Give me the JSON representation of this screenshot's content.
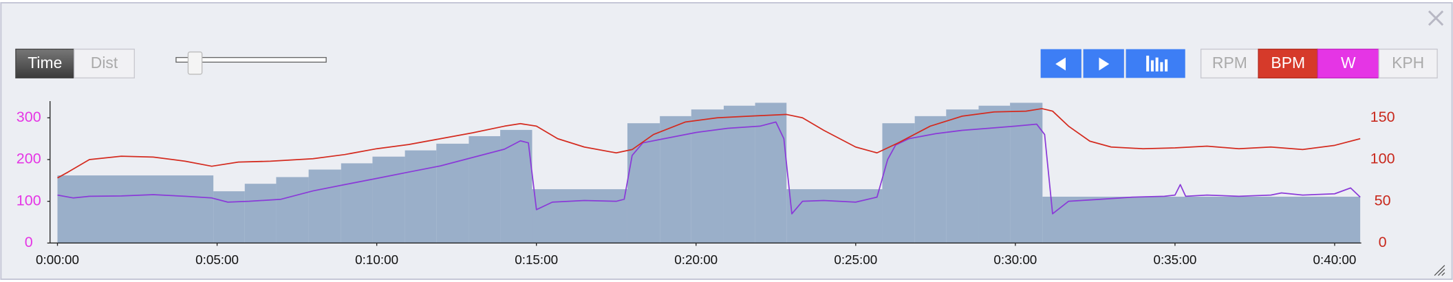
{
  "controls": {
    "modes": [
      "Time",
      "Dist"
    ],
    "channels": [
      "RPM",
      "BPM",
      "W",
      "KPH"
    ]
  },
  "chart_data": {
    "type": "combo",
    "xlim": [
      0,
      2450
    ],
    "xticks": [
      {
        "value": 0,
        "label": "0:00:00"
      },
      {
        "value": 300,
        "label": "0:05:00"
      },
      {
        "value": 600,
        "label": "0:10:00"
      },
      {
        "value": 900,
        "label": "0:15:00"
      },
      {
        "value": 1200,
        "label": "0:20:00"
      },
      {
        "value": 1500,
        "label": "0:25:00"
      },
      {
        "value": 1800,
        "label": "0:30:00"
      },
      {
        "value": 2100,
        "label": "0:35:00"
      },
      {
        "value": 2400,
        "label": "0:40:00"
      }
    ],
    "ylim": [
      0,
      340
    ],
    "yticks": [
      0,
      100,
      200,
      300
    ],
    "y_color": "#e535e5",
    "y2lim": [
      0,
      170
    ],
    "y2ticks": [
      0,
      50,
      100,
      150
    ],
    "y2_color": "#c8281c",
    "bar_color": "#93a9c6",
    "intervals": [
      {
        "start": 0,
        "end": 293,
        "value": 162
      },
      {
        "start": 293,
        "end": 352,
        "value": 124
      },
      {
        "start": 352,
        "end": 411,
        "value": 142
      },
      {
        "start": 411,
        "end": 472,
        "value": 158
      },
      {
        "start": 472,
        "end": 533,
        "value": 176
      },
      {
        "start": 533,
        "end": 592,
        "value": 191
      },
      {
        "start": 592,
        "end": 653,
        "value": 207
      },
      {
        "start": 653,
        "end": 712,
        "value": 222
      },
      {
        "start": 712,
        "end": 773,
        "value": 238
      },
      {
        "start": 773,
        "end": 832,
        "value": 256
      },
      {
        "start": 832,
        "end": 892,
        "value": 271
      },
      {
        "start": 892,
        "end": 1071,
        "value": 129
      },
      {
        "start": 1071,
        "end": 1132,
        "value": 287
      },
      {
        "start": 1132,
        "end": 1191,
        "value": 304
      },
      {
        "start": 1191,
        "end": 1252,
        "value": 320
      },
      {
        "start": 1252,
        "end": 1311,
        "value": 329
      },
      {
        "start": 1311,
        "end": 1370,
        "value": 336
      },
      {
        "start": 1370,
        "end": 1550,
        "value": 129
      },
      {
        "start": 1550,
        "end": 1611,
        "value": 287
      },
      {
        "start": 1611,
        "end": 1670,
        "value": 304
      },
      {
        "start": 1670,
        "end": 1731,
        "value": 320
      },
      {
        "start": 1731,
        "end": 1790,
        "value": 329
      },
      {
        "start": 1790,
        "end": 1851,
        "value": 336
      },
      {
        "start": 1851,
        "end": 2448,
        "value": 111
      }
    ],
    "series": [
      {
        "color": "#8a3ad8",
        "x": [
          0,
          30,
          60,
          120,
          180,
          240,
          290,
          320,
          360,
          420,
          480,
          540,
          600,
          660,
          720,
          780,
          840,
          870,
          885,
          900,
          930,
          990,
          1050,
          1065,
          1080,
          1100,
          1140,
          1200,
          1260,
          1320,
          1350,
          1365,
          1380,
          1400,
          1440,
          1500,
          1540,
          1560,
          1575,
          1600,
          1650,
          1700,
          1750,
          1800,
          1840,
          1855,
          1870,
          1900,
          1960,
          2020,
          2080,
          2100,
          2110,
          2120,
          2160,
          2220,
          2280,
          2300,
          2340,
          2400,
          2430,
          2448
        ],
        "values": [
          115,
          108,
          112,
          113,
          116,
          112,
          108,
          98,
          100,
          105,
          125,
          140,
          155,
          170,
          185,
          205,
          225,
          245,
          240,
          80,
          98,
          102,
          100,
          105,
          210,
          240,
          250,
          265,
          275,
          280,
          290,
          250,
          70,
          100,
          102,
          98,
          110,
          200,
          235,
          250,
          262,
          270,
          275,
          280,
          285,
          260,
          70,
          100,
          105,
          110,
          112,
          115,
          140,
          112,
          115,
          112,
          115,
          120,
          115,
          118,
          132,
          110
        ]
      },
      {
        "color": "#d42a1e",
        "axis": "y2",
        "x": [
          0,
          20,
          60,
          120,
          180,
          240,
          290,
          340,
          400,
          480,
          540,
          600,
          660,
          720,
          780,
          840,
          870,
          900,
          940,
          990,
          1050,
          1080,
          1120,
          1180,
          1240,
          1300,
          1370,
          1400,
          1440,
          1500,
          1540,
          1580,
          1640,
          1700,
          1760,
          1820,
          1850,
          1870,
          1900,
          1940,
          1980,
          2040,
          2100,
          2160,
          2220,
          2280,
          2340,
          2400,
          2448
        ],
        "values": [
          78,
          85,
          100,
          104,
          103,
          98,
          92,
          97,
          98,
          101,
          106,
          113,
          118,
          125,
          132,
          140,
          143,
          140,
          125,
          115,
          108,
          112,
          130,
          145,
          150,
          152,
          154,
          150,
          135,
          115,
          108,
          120,
          140,
          152,
          157,
          158,
          161,
          158,
          140,
          122,
          115,
          113,
          114,
          116,
          113,
          115,
          112,
          117,
          125
        ]
      }
    ]
  }
}
